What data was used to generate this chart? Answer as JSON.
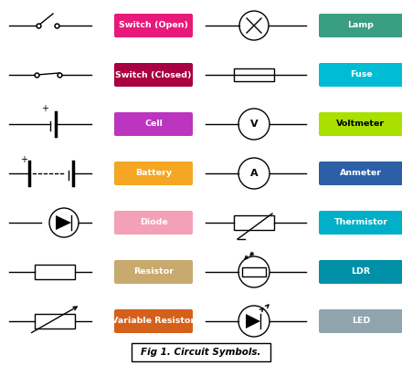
{
  "background_color": "#ffffff",
  "title": "Fig 1. Circuit Symbols.",
  "label_left": {
    "Switch (Open)": "#e8197a",
    "Switch (Closed)": "#a80040",
    "Cell": "#bb35c0",
    "Battery": "#f5a623",
    "Diode": "#f4a0b8",
    "Resistor": "#c8a96e",
    "Variable Resistor": "#d4601a"
  },
  "label_right": {
    "Lamp": "#3a9e82",
    "Fuse": "#00bcd4",
    "Voltmeter": "#aae000",
    "Anmeter": "#2d5fa6",
    "Thermistor": "#00b0c8",
    "LDR": "#0090a8",
    "LED": "#90a4ae"
  },
  "voltmeter_text_color": "#000000",
  "other_label_text_color": "#ffffff"
}
